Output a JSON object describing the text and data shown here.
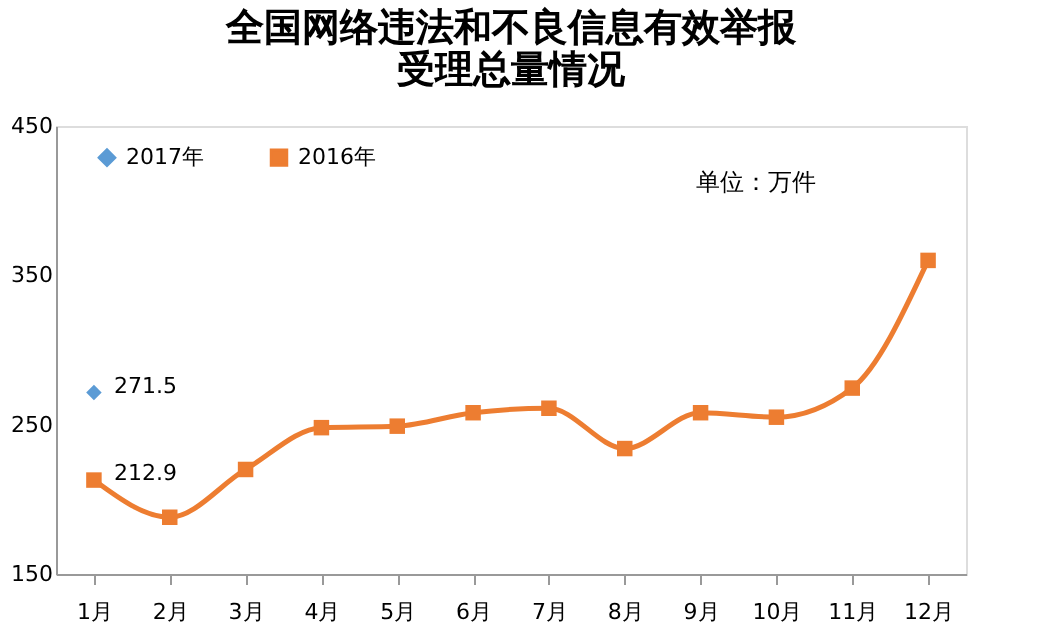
{
  "chart_data": {
    "type": "line",
    "title": [
      "全国网络违法和不良信息有效举报",
      "受理总量情况"
    ],
    "categories": [
      "1月",
      "2月",
      "3月",
      "4月",
      "5月",
      "6月",
      "7月",
      "8月",
      "9月",
      "10月",
      "11月",
      "12月"
    ],
    "series": [
      {
        "name": "2017年",
        "color": "#5b9bd5",
        "marker": "diamond",
        "values": [
          271.5,
          null,
          null,
          null,
          null,
          null,
          null,
          null,
          null,
          null,
          null,
          null
        ],
        "value_labels": [
          "271.5",
          null,
          null,
          null,
          null,
          null,
          null,
          null,
          null,
          null,
          null,
          null
        ]
      },
      {
        "name": "2016年",
        "color": "#ed7d31",
        "marker": "square",
        "values": [
          212.9,
          188,
          220,
          248,
          249,
          258,
          261,
          234,
          258,
          255,
          274.5,
          360
        ],
        "value_labels": [
          "212.9",
          null,
          null,
          null,
          null,
          null,
          null,
          null,
          null,
          null,
          null,
          null
        ]
      }
    ],
    "ylim": [
      150,
      450
    ],
    "yticks": [
      150,
      250,
      350,
      450
    ],
    "grid": false,
    "legend": "top left",
    "annotations": [
      "单位：万件"
    ]
  }
}
